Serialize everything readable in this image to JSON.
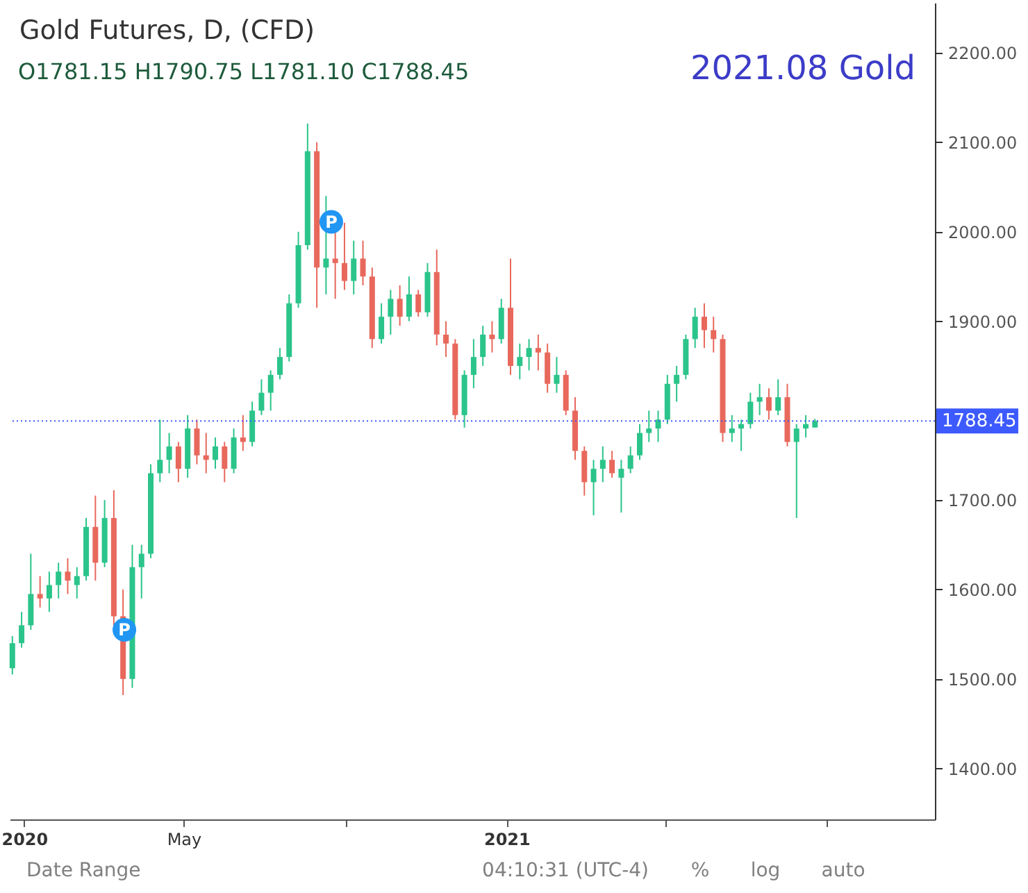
{
  "chart_data": {
    "type": "candlestick",
    "title": "Gold Futures, D, (CFD)",
    "subtitle": "O1781.15 H1790.75 L1781.10 C1788.45",
    "x": [
      "2019-12-23",
      "2019-12-30",
      "2020-01-06",
      "2020-01-13",
      "2020-01-20",
      "2020-01-27",
      "2020-02-03",
      "2020-02-10",
      "2020-02-17",
      "2020-02-24",
      "2020-03-02",
      "2020-03-09",
      "2020-03-16",
      "2020-03-23",
      "2020-03-30",
      "2020-04-06",
      "2020-04-13",
      "2020-04-20",
      "2020-04-27",
      "2020-05-04",
      "2020-05-11",
      "2020-05-18",
      "2020-05-25",
      "2020-06-01",
      "2020-06-08",
      "2020-06-15",
      "2020-06-22",
      "2020-06-29",
      "2020-07-06",
      "2020-07-13",
      "2020-07-20",
      "2020-07-27",
      "2020-08-03",
      "2020-08-10",
      "2020-08-17",
      "2020-08-24",
      "2020-08-31",
      "2020-09-07",
      "2020-09-14",
      "2020-09-21",
      "2020-09-28",
      "2020-10-05",
      "2020-10-12",
      "2020-10-19",
      "2020-10-26",
      "2020-11-02",
      "2020-11-09",
      "2020-11-16",
      "2020-11-23",
      "2020-11-30",
      "2020-12-07",
      "2020-12-14",
      "2020-12-21",
      "2020-12-28",
      "2021-01-04",
      "2021-01-11",
      "2021-01-18",
      "2021-01-25",
      "2021-02-01",
      "2021-02-08",
      "2021-02-15",
      "2021-02-22",
      "2021-03-01",
      "2021-03-08",
      "2021-03-15",
      "2021-03-22",
      "2021-03-29",
      "2021-04-05",
      "2021-04-12",
      "2021-04-19",
      "2021-04-26",
      "2021-05-03",
      "2021-05-10",
      "2021-05-17",
      "2021-05-24",
      "2021-05-31",
      "2021-06-07",
      "2021-06-14",
      "2021-06-21",
      "2021-06-28",
      "2021-07-05",
      "2021-07-12",
      "2021-07-19",
      "2021-07-26",
      "2021-08-02",
      "2021-08-09",
      "2021-08-16",
      "2021-08-23"
    ],
    "ohlc": [
      [
        1512,
        1548,
        1505,
        1540
      ],
      [
        1540,
        1575,
        1535,
        1560
      ],
      [
        1560,
        1640,
        1555,
        1595
      ],
      [
        1595,
        1615,
        1580,
        1590
      ],
      [
        1590,
        1620,
        1575,
        1605
      ],
      [
        1605,
        1630,
        1590,
        1620
      ],
      [
        1620,
        1635,
        1595,
        1610
      ],
      [
        1605,
        1625,
        1590,
        1615
      ],
      [
        1615,
        1680,
        1610,
        1670
      ],
      [
        1670,
        1705,
        1610,
        1630
      ],
      [
        1630,
        1700,
        1625,
        1680
      ],
      [
        1680,
        1711,
        1560,
        1570
      ],
      [
        1570,
        1600,
        1482,
        1500
      ],
      [
        1500,
        1650,
        1490,
        1625
      ],
      [
        1625,
        1650,
        1590,
        1640
      ],
      [
        1640,
        1740,
        1635,
        1730
      ],
      [
        1730,
        1790,
        1720,
        1745
      ],
      [
        1745,
        1775,
        1730,
        1760
      ],
      [
        1760,
        1765,
        1720,
        1735
      ],
      [
        1735,
        1795,
        1725,
        1780
      ],
      [
        1780,
        1790,
        1740,
        1750
      ],
      [
        1750,
        1775,
        1730,
        1745
      ],
      [
        1745,
        1770,
        1735,
        1760
      ],
      [
        1760,
        1765,
        1720,
        1735
      ],
      [
        1735,
        1780,
        1730,
        1770
      ],
      [
        1770,
        1795,
        1755,
        1765
      ],
      [
        1765,
        1810,
        1760,
        1800
      ],
      [
        1800,
        1835,
        1795,
        1820
      ],
      [
        1820,
        1845,
        1800,
        1840
      ],
      [
        1840,
        1870,
        1835,
        1860
      ],
      [
        1860,
        1930,
        1855,
        1920
      ],
      [
        1920,
        2000,
        1915,
        1985
      ],
      [
        1985,
        2121,
        1980,
        2090
      ],
      [
        2090,
        2100,
        1915,
        1960
      ],
      [
        1960,
        2040,
        1930,
        1970
      ],
      [
        1970,
        2000,
        1925,
        1965
      ],
      [
        1965,
        2010,
        1935,
        1945
      ],
      [
        1945,
        1990,
        1930,
        1970
      ],
      [
        1970,
        1990,
        1940,
        1950
      ],
      [
        1950,
        1960,
        1870,
        1880
      ],
      [
        1880,
        1920,
        1875,
        1905
      ],
      [
        1905,
        1935,
        1885,
        1925
      ],
      [
        1925,
        1940,
        1895,
        1905
      ],
      [
        1905,
        1950,
        1900,
        1930
      ],
      [
        1930,
        1935,
        1905,
        1910
      ],
      [
        1910,
        1965,
        1905,
        1955
      ],
      [
        1955,
        1980,
        1873,
        1885
      ],
      [
        1885,
        1900,
        1860,
        1875
      ],
      [
        1875,
        1880,
        1790,
        1795
      ],
      [
        1795,
        1845,
        1781,
        1840
      ],
      [
        1840,
        1880,
        1825,
        1860
      ],
      [
        1860,
        1895,
        1850,
        1885
      ],
      [
        1885,
        1900,
        1865,
        1880
      ],
      [
        1880,
        1925,
        1875,
        1915
      ],
      [
        1915,
        1970,
        1840,
        1850
      ],
      [
        1850,
        1875,
        1835,
        1860
      ],
      [
        1860,
        1880,
        1845,
        1870
      ],
      [
        1870,
        1885,
        1845,
        1865
      ],
      [
        1865,
        1875,
        1820,
        1830
      ],
      [
        1830,
        1860,
        1820,
        1840
      ],
      [
        1840,
        1845,
        1795,
        1800
      ],
      [
        1800,
        1815,
        1745,
        1755
      ],
      [
        1755,
        1760,
        1705,
        1720
      ],
      [
        1720,
        1745,
        1683,
        1735
      ],
      [
        1735,
        1760,
        1720,
        1745
      ],
      [
        1745,
        1755,
        1725,
        1730
      ],
      [
        1725,
        1745,
        1686,
        1735
      ],
      [
        1735,
        1760,
        1730,
        1750
      ],
      [
        1750,
        1785,
        1745,
        1775
      ],
      [
        1775,
        1800,
        1765,
        1780
      ],
      [
        1780,
        1800,
        1765,
        1790
      ],
      [
        1790,
        1840,
        1785,
        1830
      ],
      [
        1830,
        1850,
        1810,
        1840
      ],
      [
        1840,
        1885,
        1835,
        1880
      ],
      [
        1880,
        1915,
        1870,
        1905
      ],
      [
        1905,
        1920,
        1870,
        1890
      ],
      [
        1890,
        1905,
        1865,
        1880
      ],
      [
        1880,
        1885,
        1765,
        1775
      ],
      [
        1775,
        1795,
        1765,
        1780
      ],
      [
        1780,
        1790,
        1755,
        1785
      ],
      [
        1785,
        1820,
        1780,
        1810
      ],
      [
        1810,
        1830,
        1795,
        1815
      ],
      [
        1815,
        1825,
        1790,
        1800
      ],
      [
        1800,
        1835,
        1795,
        1815
      ],
      [
        1815,
        1830,
        1760,
        1765
      ],
      [
        1765,
        1785,
        1680,
        1780
      ],
      [
        1780,
        1795,
        1770,
        1785
      ],
      [
        1781.15,
        1790.75,
        1781.1,
        1788.45
      ]
    ],
    "colors": [
      "#2bc48a",
      "#2bc48a",
      "#2bc48a",
      "#e8685c",
      "#2bc48a",
      "#2bc48a",
      "#e8685c",
      "#2bc48a",
      "#2bc48a",
      "#e8685c",
      "#2bc48a",
      "#e8685c",
      "#e8685c",
      "#2bc48a",
      "#2bc48a",
      "#2bc48a",
      "#2bc48a",
      "#2bc48a",
      "#e8685c",
      "#2bc48a",
      "#e8685c",
      "#e8685c",
      "#2bc48a",
      "#e8685c",
      "#2bc48a",
      "#e8685c",
      "#2bc48a",
      "#2bc48a",
      "#2bc48a",
      "#2bc48a",
      "#2bc48a",
      "#2bc48a",
      "#2bc48a",
      "#e8685c",
      "#2bc48a",
      "#e8685c",
      "#e8685c",
      "#2bc48a",
      "#e8685c",
      "#e8685c",
      "#2bc48a",
      "#2bc48a",
      "#e8685c",
      "#2bc48a",
      "#e8685c",
      "#2bc48a",
      "#e8685c",
      "#e8685c",
      "#e8685c",
      "#2bc48a",
      "#2bc48a",
      "#2bc48a",
      "#e8685c",
      "#2bc48a",
      "#e8685c",
      "#2bc48a",
      "#2bc48a",
      "#e8685c",
      "#e8685c",
      "#2bc48a",
      "#e8685c",
      "#e8685c",
      "#e8685c",
      "#2bc48a",
      "#2bc48a",
      "#e8685c",
      "#2bc48a",
      "#2bc48a",
      "#2bc48a",
      "#2bc48a",
      "#2bc48a",
      "#2bc48a",
      "#2bc48a",
      "#2bc48a",
      "#2bc48a",
      "#e8685c",
      "#e8685c",
      "#e8685c",
      "#2bc48a",
      "#2bc48a",
      "#2bc48a",
      "#2bc48a",
      "#e8685c",
      "#2bc48a",
      "#e8685c",
      "#2bc48a",
      "#2bc48a",
      "#2bc48a"
    ],
    "xlim": [
      "2019-12-21",
      "2021-11-22"
    ],
    "xticks": [
      {
        "value": "2020-01-01",
        "label": "2020"
      },
      {
        "value": "2020-05-01",
        "label": "May"
      },
      {
        "value": "2020-09-01",
        "label": null
      },
      {
        "value": "2021-01-01",
        "label": "2021"
      },
      {
        "value": "2021-05-01",
        "label": null
      },
      {
        "value": "2021-09-01",
        "label": null
      }
    ],
    "ylim": [
      1343,
      2256
    ],
    "yticks": [
      {
        "value": 1400,
        "label": "1400.00"
      },
      {
        "value": 1500,
        "label": "1500.00"
      },
      {
        "value": 1600,
        "label": "1600.00"
      },
      {
        "value": 1700,
        "label": "1700.00"
      },
      {
        "value": 1900,
        "label": "1900.00"
      },
      {
        "value": 2000,
        "label": "2000.00"
      },
      {
        "value": 2100,
        "label": "2100.00"
      },
      {
        "value": 2200,
        "label": "2200.00"
      }
    ],
    "ref_lines": [
      {
        "axis": "y",
        "value": 1788.45,
        "label": "1788.45",
        "color": "#3d5afe",
        "line_style": "dotted"
      }
    ],
    "annotations": [
      "2021.08 Gold",
      {
        "text": "P",
        "x": "2020-03-17",
        "y": 1555
      },
      {
        "text": "P",
        "x": "2020-08-21",
        "y": 2011
      },
      "Date Range",
      "04:10:31 (UTC-4)",
      "%",
      "log",
      "auto"
    ]
  }
}
